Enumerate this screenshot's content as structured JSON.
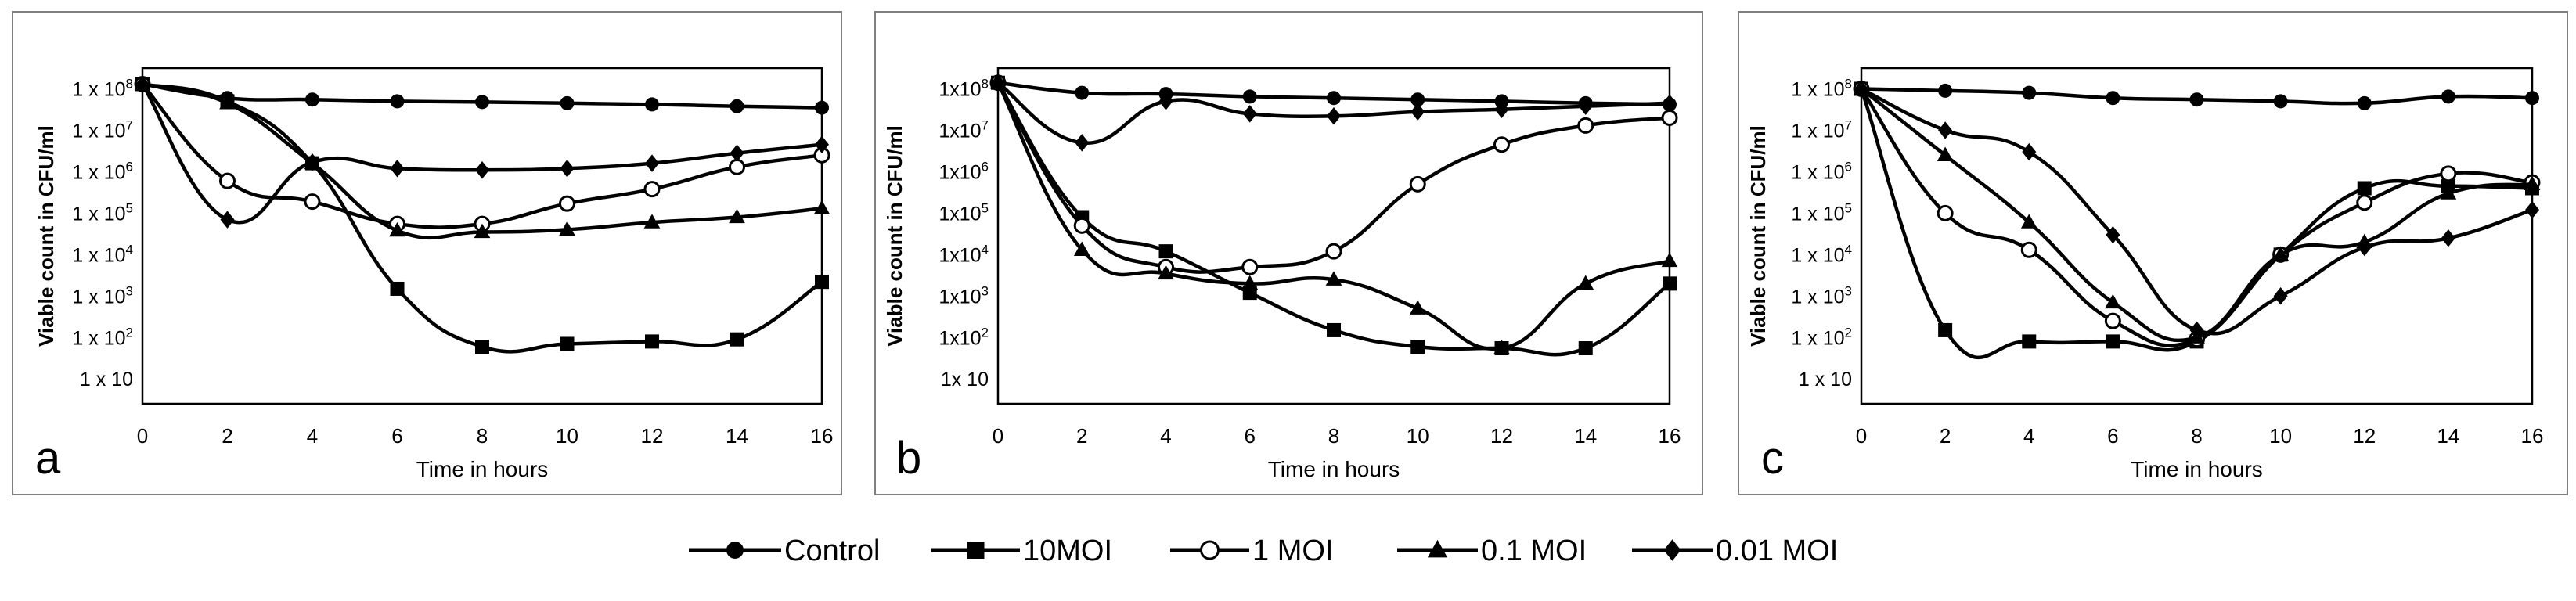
{
  "colors": {
    "line": "#000000",
    "panel_border": "#7f7f7f",
    "plot_border": "#000000",
    "background": "#ffffff"
  },
  "legend": [
    {
      "name": "Control",
      "marker": "circle"
    },
    {
      "name": "10MOI",
      "marker": "square"
    },
    {
      "name": "1 MOI",
      "marker": "open-circle"
    },
    {
      "name": "0.1 MOI",
      "marker": "triangle"
    },
    {
      "name": "0.01 MOI",
      "marker": "diamond"
    }
  ],
  "chart_data": [
    {
      "type": "line",
      "panel_label": "a",
      "title": "",
      "xlabel": "Time in hours",
      "ylabel": "Viable count in CFU/ml",
      "x": [
        0,
        2,
        4,
        6,
        8,
        10,
        12,
        14,
        16
      ],
      "xlim": [
        0,
        16
      ],
      "ylim_log10": [
        0.4,
        8.5
      ],
      "y_scale": "log",
      "y_ticks": [
        {
          "label": "1 x 10",
          "sup": "8",
          "log": 8
        },
        {
          "label": "1 x 10",
          "sup": "7",
          "log": 7
        },
        {
          "label": "1 x 10",
          "sup": "6",
          "log": 6
        },
        {
          "label": "1 x 10",
          "sup": "5",
          "log": 5
        },
        {
          "label": "1 x 10",
          "sup": "4",
          "log": 4
        },
        {
          "label": "1 x 10",
          "sup": "3",
          "log": 3
        },
        {
          "label": "1 x 10",
          "sup": "2",
          "log": 2
        },
        {
          "label": "1 x 10",
          "sup": "",
          "log": 1
        }
      ],
      "series": [
        {
          "name": "Control",
          "values": [
            130000000.0,
            60000000.0,
            55000000.0,
            50000000.0,
            48000000.0,
            45000000.0,
            42000000.0,
            38000000.0,
            35000000.0
          ]
        },
        {
          "name": "10MOI",
          "values": [
            130000000.0,
            50000000.0,
            1600000.0,
            1500.0,
            60,
            70,
            80,
            90,
            2200.0
          ]
        },
        {
          "name": "1 MOI",
          "values": [
            130000000.0,
            600000.0,
            190000.0,
            55000.0,
            55000.0,
            170000.0,
            380000.0,
            1300000.0,
            2500000.0
          ]
        },
        {
          "name": "0.1 MOI",
          "values": [
            130000000.0,
            45000000.0,
            1600000.0,
            38000.0,
            35000.0,
            40000.0,
            60000.0,
            80000.0,
            130000.0
          ]
        },
        {
          "name": "0.01 MOI",
          "values": [
            130000000.0,
            70000.0,
            1700000.0,
            1200000.0,
            1100000.0,
            1200000.0,
            1600000.0,
            2800000.0,
            4500000.0
          ]
        }
      ]
    },
    {
      "type": "line",
      "panel_label": "b",
      "title": "",
      "xlabel": "Time in hours",
      "ylabel": "Viable count in CFU/ml",
      "x": [
        0,
        2,
        4,
        6,
        8,
        10,
        12,
        14,
        16
      ],
      "xlim": [
        0,
        16
      ],
      "ylim_log10": [
        0.4,
        8.5
      ],
      "y_scale": "log",
      "y_ticks": [
        {
          "label": "1x10",
          "sup": "8",
          "log": 8
        },
        {
          "label": "1x10",
          "sup": "7",
          "log": 7
        },
        {
          "label": "1x10",
          "sup": "6",
          "log": 6
        },
        {
          "label": "1x10",
          "sup": "5",
          "log": 5
        },
        {
          "label": "1x10",
          "sup": "4",
          "log": 4
        },
        {
          "label": "1x10",
          "sup": "3",
          "log": 3
        },
        {
          "label": "1x10",
          "sup": "2",
          "log": 2
        },
        {
          "label": "1x 10",
          "sup": "",
          "log": 1
        }
      ],
      "series": [
        {
          "name": "Control",
          "values": [
            140000000.0,
            80000000.0,
            75000000.0,
            65000000.0,
            60000000.0,
            55000000.0,
            50000000.0,
            45000000.0,
            42000000.0
          ]
        },
        {
          "name": "10MOI",
          "values": [
            140000000.0,
            80000.0,
            12000.0,
            1200.0,
            150,
            60,
            55,
            55,
            2000.0
          ]
        },
        {
          "name": "1 MOI",
          "values": [
            140000000.0,
            50000.0,
            5000.0,
            5000.0,
            12000.0,
            500000.0,
            4500000.0,
            13000000.0,
            20000000.0
          ]
        },
        {
          "name": "0.1 MOI",
          "values": [
            140000000.0,
            13000.0,
            3500.0,
            2000.0,
            2500.0,
            500,
            55,
            2000.0,
            7000.0
          ]
        },
        {
          "name": "0.01 MOI",
          "values": [
            140000000.0,
            5000000.0,
            50000000.0,
            25000000.0,
            22000000.0,
            28000000.0,
            32000000.0,
            38000000.0,
            45000000.0
          ]
        }
      ]
    },
    {
      "type": "line",
      "panel_label": "c",
      "title": "",
      "xlabel": "Time in hours",
      "ylabel": "Viable count in CFU/ml",
      "x": [
        0,
        2,
        4,
        6,
        8,
        10,
        12,
        14,
        16
      ],
      "xlim": [
        0,
        16
      ],
      "ylim_log10": [
        0.4,
        8.5
      ],
      "y_scale": "log",
      "y_ticks": [
        {
          "label": "1 x 10",
          "sup": "8",
          "log": 8
        },
        {
          "label": "1 x 10",
          "sup": "7",
          "log": 7
        },
        {
          "label": "1 x 10",
          "sup": "6",
          "log": 6
        },
        {
          "label": "1 x 10",
          "sup": "5",
          "log": 5
        },
        {
          "label": "1 x 10",
          "sup": "4",
          "log": 4
        },
        {
          "label": "1 x 10",
          "sup": "3",
          "log": 3
        },
        {
          "label": "1 x 10",
          "sup": "2",
          "log": 2
        },
        {
          "label": "1 x 10",
          "sup": "",
          "log": 1
        }
      ],
      "series": [
        {
          "name": "Control",
          "values": [
            100000000.0,
            90000000.0,
            80000000.0,
            60000000.0,
            55000000.0,
            50000000.0,
            45000000.0,
            65000000.0,
            60000000.0
          ]
        },
        {
          "name": "10MOI",
          "values": [
            100000000.0,
            150,
            80,
            80,
            80,
            10000.0,
            400000.0,
            450000.0,
            400000.0
          ]
        },
        {
          "name": "1 MOI",
          "values": [
            100000000.0,
            100000.0,
            13000.0,
            250,
            90,
            10000.0,
            180000.0,
            900000.0,
            550000.0
          ]
        },
        {
          "name": "0.1 MOI",
          "values": [
            100000000.0,
            2500000.0,
            60000.0,
            700,
            100,
            10000.0,
            20000.0,
            300000.0,
            500000.0
          ]
        },
        {
          "name": "0.01 MOI",
          "values": [
            100000000.0,
            10000000.0,
            3000000.0,
            30000.0,
            150,
            1000.0,
            15000.0,
            25000.0,
            120000.0
          ]
        }
      ]
    }
  ]
}
